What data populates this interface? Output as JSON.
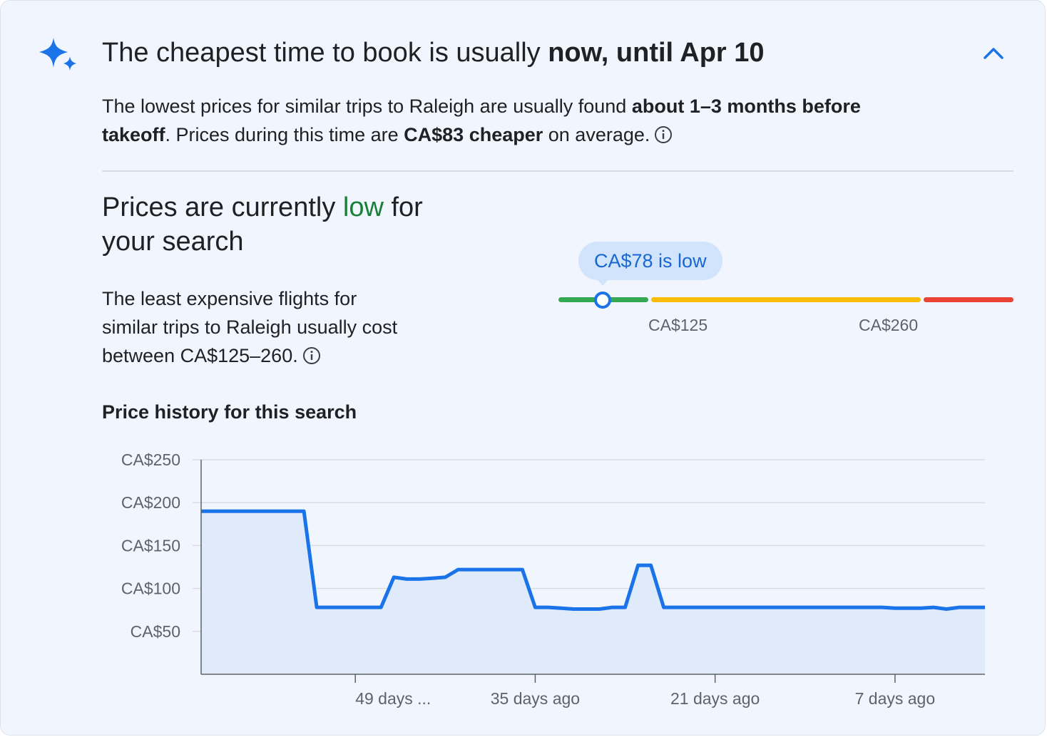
{
  "header": {
    "headline_prefix": "The cheapest time to book is usually ",
    "headline_bold": "now, until Apr 10"
  },
  "insight": {
    "part1": "The lowest prices for similar trips to Raleigh are usually found ",
    "bold1": "about 1–3 months before takeoff",
    "part2": ". Prices during this time are ",
    "bold2": "CA$83 cheaper",
    "part3": " on average."
  },
  "status": {
    "title_prefix": "Prices are currently ",
    "title_level": "low",
    "title_suffix": " for your search",
    "description": "The least expensive flights for similar trips to Raleigh usually cost between CA$125–260."
  },
  "price_range": {
    "current_label": "CA$78 is low",
    "current_price": 78,
    "low_threshold_label": "CA$125",
    "high_threshold_label": "CA$260"
  },
  "history": {
    "title": "Price history for this search"
  },
  "colors": {
    "accent": "#1a73e8",
    "low": "#188038",
    "range_green": "#34a853",
    "range_yellow": "#fbbc04",
    "range_red": "#ea4335"
  },
  "icons": {
    "sparkle": "sparkle-icon",
    "collapse": "chevron-up-icon",
    "info": "info-icon"
  },
  "chart_data": {
    "type": "area",
    "title": "Price history for this search",
    "xlabel": "",
    "ylabel": "",
    "x_unit": "days ago",
    "ylim": [
      0,
      250
    ],
    "y_ticks": [
      50,
      100,
      150,
      200,
      250
    ],
    "y_tick_labels": [
      "CA$50",
      "CA$100",
      "CA$150",
      "CA$200",
      "CA$250"
    ],
    "x_ticks": [
      49,
      35,
      21,
      7
    ],
    "x_tick_labels": [
      "49 days ...",
      "35 days ago",
      "21 days ago",
      "7 days ago"
    ],
    "grid": true,
    "series": [
      {
        "x": [
          61,
          53,
          52,
          47,
          46,
          45,
          44,
          43,
          42,
          41,
          40,
          36,
          35,
          34,
          33,
          32,
          31,
          30,
          29,
          28,
          27,
          26,
          25,
          24,
          23,
          22,
          21,
          20,
          19,
          18,
          17,
          16,
          15,
          14,
          13,
          12,
          11,
          10,
          9,
          8,
          7,
          6,
          5,
          4,
          3,
          2,
          1,
          0
        ],
        "y": [
          190,
          190,
          78,
          78,
          113,
          111,
          111,
          112,
          113,
          122,
          122,
          122,
          78,
          78,
          77,
          76,
          76,
          76,
          78,
          78,
          127,
          127,
          78,
          78,
          78,
          78,
          78,
          78,
          78,
          78,
          78,
          78,
          78,
          78,
          78,
          78,
          78,
          78,
          78,
          78,
          77,
          77,
          77,
          78,
          76,
          78,
          78,
          78
        ]
      }
    ]
  }
}
